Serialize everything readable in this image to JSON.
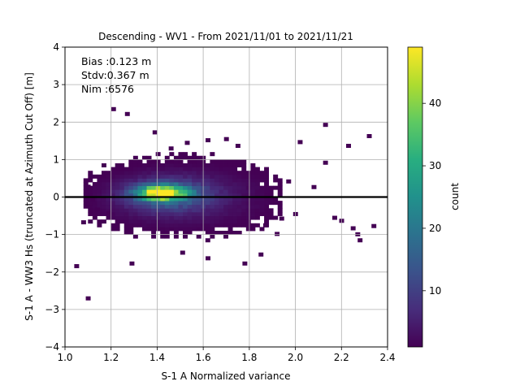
{
  "chart_data": {
    "type": "heatmap",
    "title": "Descending - WV1 - From 2021/11/01 to 2021/11/21",
    "xlabel": "S-1 A Normalized variance",
    "ylabel": "S-1 A - WW3 Hs (truncated at Azimuth Cut Off) [m]",
    "xlim": [
      1.0,
      2.4
    ],
    "ylim": [
      -4,
      4
    ],
    "x_ticks": [
      "1.0",
      "1.2",
      "1.4",
      "1.6",
      "1.8",
      "2.0",
      "2.2",
      "2.4"
    ],
    "y_ticks": [
      "4",
      "3",
      "2",
      "1",
      "0",
      "−1",
      "−2",
      "−3",
      "−4"
    ],
    "grid": true,
    "stats_annotation": [
      "Bias :0.123 m",
      "Stdv:0.367 m",
      "Nim :6576"
    ],
    "reference_line_y": 0,
    "colorbar": {
      "label": "count",
      "range": [
        1,
        49
      ],
      "ticks": [
        "10",
        "20",
        "30",
        "40"
      ],
      "colormap": "viridis"
    },
    "density_clusters": [
      {
        "x": 1.42,
        "y": 0.12,
        "sx": 0.07,
        "sy": 0.13,
        "peak": 48
      },
      {
        "x": 1.45,
        "y": 0.05,
        "sx": 0.13,
        "sy": 0.3,
        "peak": 14
      },
      {
        "x": 1.52,
        "y": 0.0,
        "sx": 0.24,
        "sy": 0.55,
        "peak": 4
      }
    ],
    "outliers": [
      [
        1.21,
        2.35
      ],
      [
        1.27,
        2.22
      ],
      [
        1.39,
        1.73
      ],
      [
        1.08,
        -0.67
      ],
      [
        1.05,
        -1.84
      ],
      [
        1.1,
        -2.7
      ],
      [
        1.29,
        -1.77
      ],
      [
        1.51,
        -1.48
      ],
      [
        1.62,
        -1.63
      ],
      [
        1.78,
        -1.77
      ],
      [
        1.85,
        -1.53
      ],
      [
        2.13,
        1.93
      ],
      [
        2.32,
        1.63
      ],
      [
        2.23,
        1.37
      ],
      [
        2.13,
        0.92
      ],
      [
        2.02,
        1.47
      ],
      [
        1.97,
        0.42
      ],
      [
        2.0,
        -0.45
      ],
      [
        2.08,
        0.27
      ],
      [
        2.2,
        -0.63
      ],
      [
        2.25,
        -0.83
      ],
      [
        2.27,
        -0.99
      ],
      [
        2.28,
        -1.15
      ],
      [
        2.34,
        -0.77
      ],
      [
        2.17,
        -0.55
      ],
      [
        1.94,
        -0.57
      ],
      [
        1.87,
        -0.75
      ],
      [
        1.92,
        -0.98
      ],
      [
        1.75,
        1.37
      ],
      [
        1.7,
        1.55
      ],
      [
        1.62,
        1.52
      ],
      [
        1.53,
        1.45
      ],
      [
        1.46,
        1.3
      ],
      [
        1.19,
        -0.42
      ],
      [
        1.14,
        -0.33
      ],
      [
        1.1,
        0.28
      ],
      [
        1.12,
        -0.05
      ]
    ]
  }
}
